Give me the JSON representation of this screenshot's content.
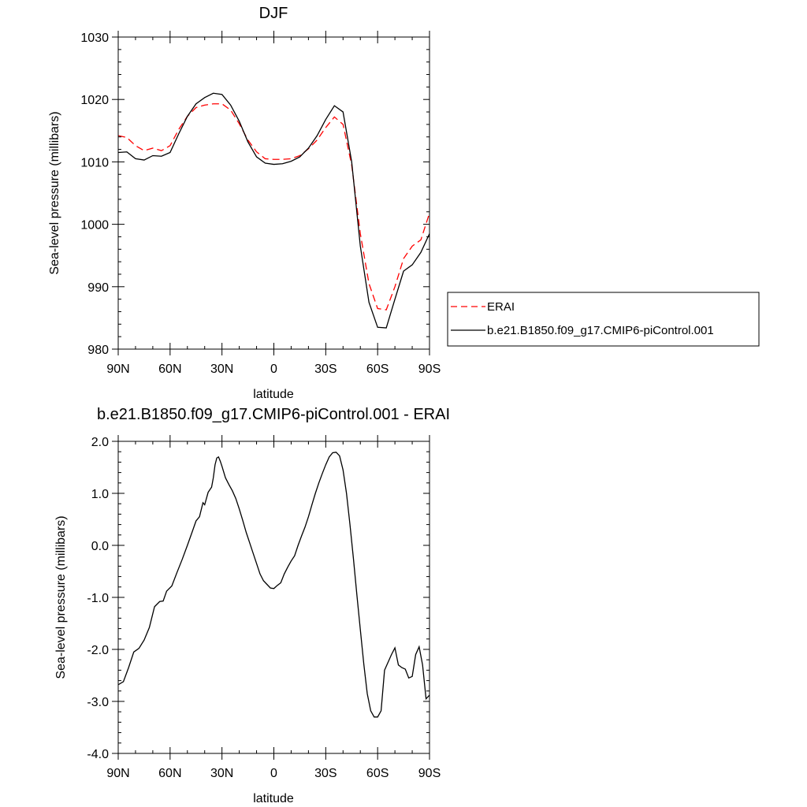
{
  "chart_data": [
    {
      "type": "line",
      "title": "DJF",
      "xlabel": "latitude",
      "ylabel": "Sea-level pressure (millibars)",
      "x_tick_values": [
        -90,
        -60,
        -30,
        0,
        30,
        60,
        90
      ],
      "x_tick_labels": [
        "90N",
        "60N",
        "30N",
        "0",
        "30S",
        "60S",
        "90S"
      ],
      "xlim": [
        -90,
        90
      ],
      "ylim": [
        980,
        1030
      ],
      "y_tick_values": [
        980,
        990,
        1000,
        1010,
        1020,
        1030
      ],
      "y_tick_labels": [
        "980",
        "990",
        "1000",
        "1010",
        "1020",
        "1030"
      ],
      "legend_position": "right",
      "grid": false,
      "x": [
        -90,
        -85,
        -80,
        -75,
        -70,
        -65,
        -60,
        -55,
        -50,
        -45,
        -40,
        -35,
        -30,
        -25,
        -20,
        -15,
        -10,
        -5,
        0,
        5,
        10,
        15,
        20,
        25,
        30,
        35,
        40,
        45,
        50,
        55,
        60,
        65,
        70,
        75,
        80,
        85,
        90
      ],
      "series": [
        {
          "name": "ERAI",
          "color": "#ff0000",
          "dash": "dashed",
          "values": [
            1014.2,
            1013.9,
            1012.6,
            1011.8,
            1012.2,
            1011.8,
            1012.6,
            1015.2,
            1017.3,
            1018.7,
            1019.1,
            1019.3,
            1019.3,
            1018.3,
            1016.1,
            1013.5,
            1011.6,
            1010.5,
            1010.4,
            1010.4,
            1010.5,
            1011.0,
            1012.1,
            1013.5,
            1015.5,
            1017.2,
            1016.0,
            1009.5,
            998.5,
            990.5,
            986.5,
            986.3,
            990.0,
            994.5,
            996.5,
            997.5,
            1001.8
          ]
        },
        {
          "name": "b.e21.B1850.f09_g17.CMIP6-piControl.001",
          "color": "#000000",
          "dash": "solid",
          "values": [
            1011.5,
            1011.6,
            1010.5,
            1010.3,
            1011.0,
            1010.9,
            1011.5,
            1014.5,
            1017.3,
            1019.3,
            1020.3,
            1021.0,
            1020.8,
            1019.1,
            1016.5,
            1013.2,
            1010.8,
            1009.8,
            1009.6,
            1009.7,
            1010.1,
            1010.8,
            1012.2,
            1014.2,
            1016.8,
            1019.0,
            1018.0,
            1010.0,
            996.5,
            987.5,
            983.5,
            983.4,
            988.0,
            992.5,
            993.5,
            995.5,
            998.5
          ]
        }
      ]
    },
    {
      "type": "line",
      "title": "b.e21.B1850.f09_g17.CMIP6-piControl.001 - ERAI",
      "xlabel": "latitude",
      "ylabel": "Sea-level pressure (millibars)",
      "x_tick_values": [
        -90,
        -60,
        -30,
        0,
        30,
        60,
        90
      ],
      "x_tick_labels": [
        "90N",
        "60N",
        "30N",
        "0",
        "30S",
        "60S",
        "90S"
      ],
      "xlim": [
        -90,
        90
      ],
      "ylim": [
        -4.0,
        2.0
      ],
      "y_tick_values": [
        -4.0,
        -3.0,
        -2.0,
        -1.0,
        0.0,
        1.0,
        2.0
      ],
      "y_tick_labels": [
        "-4.0",
        "-3.0",
        "-2.0",
        "-1.0",
        "0.0",
        "1.0",
        "2.0"
      ],
      "grid": false,
      "x": [
        -90,
        -87,
        -84,
        -81,
        -78,
        -75,
        -72,
        -69,
        -66,
        -64,
        -62,
        -59,
        -56,
        -53,
        -50,
        -47,
        -45,
        -43,
        -41,
        -40,
        -38,
        -36,
        -35,
        -34,
        -33,
        -32,
        -31,
        -30,
        -28,
        -26,
        -24,
        -22,
        -20,
        -18,
        -16,
        -14,
        -12,
        -10,
        -8,
        -6,
        -4,
        -2,
        0,
        2,
        4,
        6,
        8,
        10,
        12,
        14,
        16,
        18,
        20,
        22,
        24,
        26,
        28,
        30,
        32,
        34,
        36,
        38,
        40,
        42,
        44,
        46,
        48,
        50,
        52,
        54,
        56,
        58,
        60,
        62,
        64,
        66,
        68,
        70,
        72,
        74,
        76,
        78,
        80,
        82,
        84,
        86,
        88,
        90
      ],
      "series": [
        {
          "name": "",
          "color": "#000000",
          "dash": "solid",
          "values": [
            -2.68,
            -2.62,
            -2.35,
            -2.05,
            -1.98,
            -1.82,
            -1.58,
            -1.18,
            -1.08,
            -1.07,
            -0.88,
            -0.78,
            -0.52,
            -0.27,
            0.0,
            0.28,
            0.47,
            0.55,
            0.82,
            0.78,
            1.02,
            1.12,
            1.3,
            1.55,
            1.68,
            1.7,
            1.62,
            1.52,
            1.3,
            1.17,
            1.05,
            0.9,
            0.7,
            0.48,
            0.25,
            0.05,
            -0.15,
            -0.35,
            -0.55,
            -0.68,
            -0.75,
            -0.82,
            -0.83,
            -0.77,
            -0.72,
            -0.55,
            -0.42,
            -0.3,
            -0.2,
            0.0,
            0.18,
            0.35,
            0.55,
            0.78,
            1.0,
            1.2,
            1.38,
            1.55,
            1.7,
            1.78,
            1.79,
            1.72,
            1.45,
            1.0,
            0.4,
            -0.25,
            -0.95,
            -1.62,
            -2.28,
            -2.85,
            -3.18,
            -3.3,
            -3.3,
            -3.18,
            -2.4,
            -2.25,
            -2.1,
            -1.97,
            -2.3,
            -2.35,
            -2.38,
            -2.55,
            -2.52,
            -2.1,
            -1.95,
            -2.3,
            -2.95,
            -2.88
          ]
        }
      ]
    }
  ]
}
